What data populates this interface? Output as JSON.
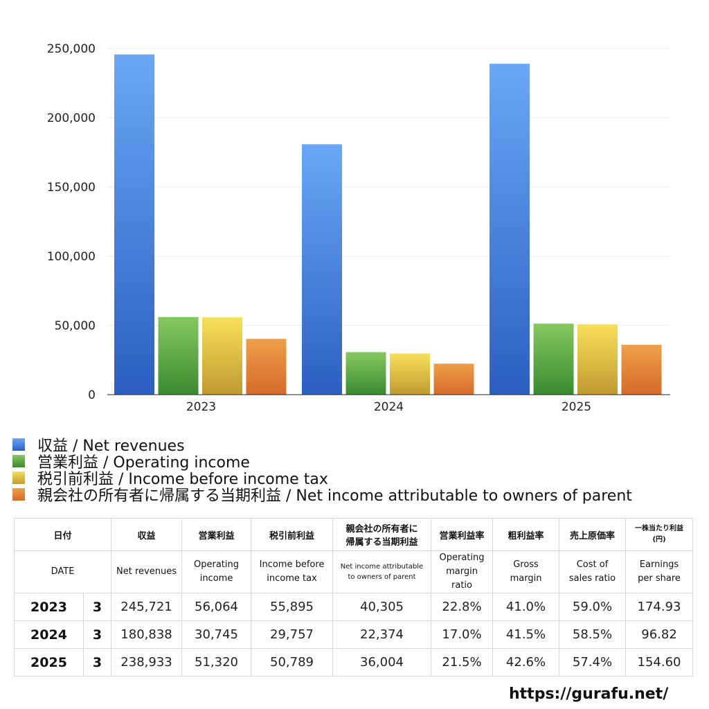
{
  "chart_data": {
    "type": "bar",
    "categories": [
      "2023",
      "2024",
      "2025"
    ],
    "series": [
      {
        "name": "収益 / Net revenues",
        "values": [
          245721,
          180838,
          238933
        ],
        "color_top": "#6aa8f6",
        "color_bottom": "#2c5fc0"
      },
      {
        "name": "営業利益 / Operating income",
        "values": [
          56064,
          30745,
          51320
        ],
        "color_top": "#86c860",
        "color_bottom": "#3a8a30"
      },
      {
        "name": "税引前利益 / Income before income tax",
        "values": [
          55895,
          29757,
          50789
        ],
        "color_top": "#f7e05a",
        "color_bottom": "#c09a30"
      },
      {
        "name": "親会社の所有者に帰属する当期利益 / Net income attributable to owners of parent",
        "values": [
          40305,
          22374,
          36004
        ],
        "color_top": "#eea04a",
        "color_bottom": "#d46a2a"
      }
    ],
    "ylim": [
      0,
      250000
    ],
    "yticks": [
      "0",
      "50,000",
      "100,000",
      "150,000",
      "200,000",
      "250,000"
    ],
    "grid": true,
    "legend_position": "bottom"
  },
  "table": {
    "header_jp": [
      "日付",
      "収益",
      "営業利益",
      "税引前利益",
      "親会社の所有者に\n帰属する当期利益",
      "営業利益率",
      "粗利益率",
      "売上原価率",
      "一株当たり利益\n(円)"
    ],
    "header_en": [
      "DATE",
      "Net revenues",
      "Operating\nincome",
      "Income before\nincome tax",
      "Net income attributable\nto owners of parent",
      "Operating\nmargin\nratio",
      "Gross\nmargin",
      "Cost of\nsales ratio",
      "Earnings\nper share"
    ],
    "rows": [
      {
        "year": "2023",
        "month": "3",
        "values": [
          "245,721",
          "56,064",
          "55,895",
          "40,305",
          "22.8%",
          "41.0%",
          "59.0%",
          "174.93"
        ]
      },
      {
        "year": "2024",
        "month": "3",
        "values": [
          "180,838",
          "30,745",
          "29,757",
          "22,374",
          "17.0%",
          "41.5%",
          "58.5%",
          "96.82"
        ]
      },
      {
        "year": "2025",
        "month": "3",
        "values": [
          "238,933",
          "51,320",
          "50,789",
          "36,004",
          "21.5%",
          "42.6%",
          "57.4%",
          "154.60"
        ]
      }
    ]
  },
  "footer": {
    "site": "https://gurafu.net/"
  }
}
